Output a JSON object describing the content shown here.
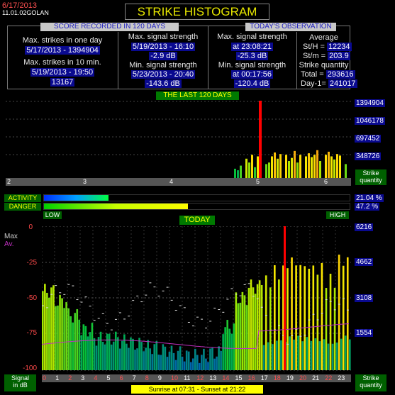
{
  "header": {
    "date": "6/17/2013",
    "version": "11.01.02",
    "station": "GOLAN",
    "title": "STRIKE HISTOGRAM"
  },
  "score": {
    "header": "SCORE RECORDED IN 120 DAYS",
    "max_strikes_day_label": "Max. strikes in one day",
    "max_strikes_day_value": "5/17/2013 - 1394904",
    "max_strikes_10min_label": "Max. strikes in 10 min.",
    "max_strikes_10min_date": "5/19/2013 - 19:50",
    "max_strikes_10min_value": "13167",
    "max_signal_label": "Max. signal strength",
    "max_signal_date": "5/19/2013 - 16:10",
    "max_signal_value": "-2.9 dB",
    "min_signal_label": "Min. signal strength",
    "min_signal_date": "5/23/2013 - 20:40",
    "min_signal_value": "-143.6 dB"
  },
  "today": {
    "header": "TODAY'S OBSERVATION",
    "max_signal_label": "Max. signal strength",
    "max_signal_time": "at 23:08:21",
    "max_signal_value": "-25.3 dB",
    "min_signal_label": "Min. signal strength",
    "min_signal_time": "at 00:17:56",
    "min_signal_value": "-120.4 dB",
    "average_label": "Average",
    "sth_label": "St/H =",
    "sth_value": "12234",
    "stm_label": "St/m =",
    "stm_value": "203.9",
    "quantity_label": "Strike quantity",
    "total_label": "Total  =",
    "total_value": "293616",
    "day1_label": "Day-1=",
    "day1_value": "241017"
  },
  "last120": {
    "label": "THE LAST 120 DAYS",
    "y_ticks": [
      "1394904",
      "1046178",
      "697452",
      "348726"
    ],
    "x_ticks": [
      "2",
      "3",
      "4",
      "5",
      "6"
    ],
    "quantity_label1": "Strike",
    "quantity_label2": "quantity"
  },
  "activity": {
    "label": "ACTIVITY",
    "value": "21.04 %",
    "fraction": 0.2104
  },
  "danger": {
    "label": "DANGER",
    "value": "47.2 %",
    "fraction": 0.472,
    "low_label": "LOW",
    "high_label": "HIGH"
  },
  "today_chart": {
    "label": "TODAY",
    "max_label": "Max",
    "av_label": "Av.",
    "y_left": [
      "0",
      "-25",
      "-50",
      "-75",
      "-100"
    ],
    "y_right": [
      "6216",
      "4662",
      "3108",
      "1554"
    ],
    "x_ticks": [
      "0",
      "1",
      "2",
      "3",
      "4",
      "5",
      "6",
      "7",
      "8",
      "9",
      "10",
      "11",
      "12",
      "13",
      "14",
      "15",
      "16",
      "17",
      "18",
      "19",
      "20",
      "21",
      "22",
      "23"
    ],
    "signal_label1": "Signal",
    "signal_label2": "in dB",
    "quantity_label1": "Strike",
    "quantity_label2": "quantity",
    "sunrise_text": "Sunrise at 07:31  -  Sunset at 21:22"
  },
  "colors": {
    "accent_yellow": "#e6e600",
    "panel_blue": "#0a0a90",
    "label_green": "#007a00",
    "marker_red": "#ff0000"
  }
}
